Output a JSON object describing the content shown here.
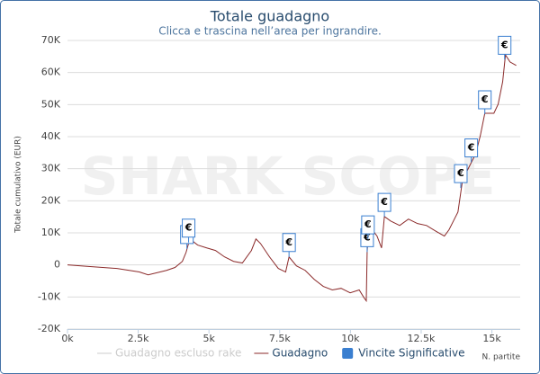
{
  "chart_data": {
    "type": "line",
    "title": "Totale guadagno",
    "subtitle": "Clicca e trascina nell’area per ingrandire.",
    "watermark": "SHARK SCOPE",
    "y_label": "Totale cumulativo (EUR)",
    "x_label": "N. partite",
    "flag_text": "€",
    "xlim": [
      0,
      16000
    ],
    "ylim": [
      -20000,
      70000
    ],
    "xticks": [
      {
        "value": 0,
        "label": "0k"
      },
      {
        "value": 2500,
        "label": "2.5k"
      },
      {
        "value": 5000,
        "label": "5k"
      },
      {
        "value": 7500,
        "label": "7.5k"
      },
      {
        "value": 10000,
        "label": "10k"
      },
      {
        "value": 12500,
        "label": "12.5k"
      },
      {
        "value": 15000,
        "label": "15k"
      }
    ],
    "yticks": [
      {
        "value": -20000,
        "label": "-20K"
      },
      {
        "value": -10000,
        "label": "-10K"
      },
      0,
      {
        "value": 10000,
        "label": "10K"
      },
      {
        "value": 20000,
        "label": "20K"
      },
      {
        "value": 30000,
        "label": "30K"
      },
      {
        "value": 40000,
        "label": "40K"
      },
      {
        "value": 50000,
        "label": "50K"
      },
      {
        "value": 60000,
        "label": "60K"
      },
      {
        "value": 70000,
        "label": "70K"
      }
    ],
    "grid": true,
    "series": [
      {
        "name": "Guadagno escluso rake",
        "color": "#cccccc",
        "visible": false
      },
      {
        "name": "Guadagno",
        "color": "#8b2a2a",
        "visible": true,
        "x": [
          0,
          800,
          1750,
          2540,
          2850,
          3500,
          3800,
          4060,
          4190,
          4280,
          4440,
          4600,
          4920,
          5230,
          5550,
          5870,
          6180,
          6500,
          6660,
          6820,
          7140,
          7450,
          7710,
          7830,
          8090,
          8400,
          8720,
          9040,
          9360,
          9670,
          9990,
          10310,
          10470,
          10560,
          10590,
          10620,
          10780,
          10940,
          11100,
          11200,
          11420,
          11740,
          12050,
          12370,
          12690,
          13000,
          13320,
          13480,
          13640,
          13800,
          13960,
          14110,
          14270,
          14430,
          14590,
          14750,
          15070,
          15220,
          15380,
          15480,
          15640,
          15860
        ],
        "values": [
          0,
          -500,
          -1100,
          -2200,
          -3100,
          -1700,
          -800,
          1100,
          3900,
          6700,
          7300,
          6200,
          5300,
          4500,
          2500,
          1100,
          600,
          4500,
          8100,
          6700,
          2500,
          -1100,
          -2200,
          2500,
          -300,
          -1700,
          -4500,
          -6700,
          -7800,
          -7300,
          -8700,
          -7800,
          -10100,
          -11200,
          3900,
          8100,
          10900,
          9000,
          5300,
          15100,
          13700,
          12300,
          14300,
          12900,
          12300,
          10600,
          9000,
          10900,
          13700,
          16500,
          26300,
          29100,
          31900,
          34700,
          40300,
          47300,
          47300,
          50100,
          57100,
          65500,
          63300,
          62200
        ]
      },
      {
        "name": "Vincite Significative",
        "color": "#3a7fd0",
        "visible": true,
        "marker": "flag",
        "x": [
          4220,
          4280,
          7830,
          10590,
          10620,
          11200,
          13900,
          14270,
          14750,
          15450
        ],
        "values": [
          5000,
          7000,
          2500,
          4000,
          8000,
          15000,
          24000,
          32000,
          47000,
          64000
        ]
      }
    ]
  }
}
